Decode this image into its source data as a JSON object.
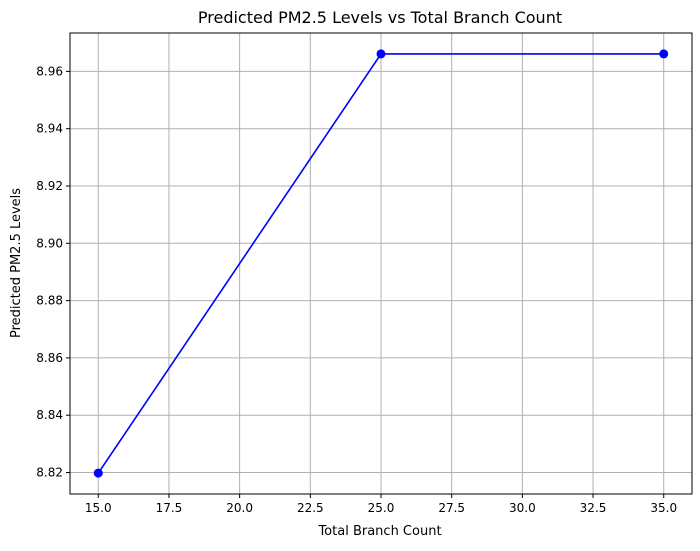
{
  "chart_data": {
    "type": "line",
    "title": "Predicted PM2.5 Levels vs Total Branch Count",
    "xlabel": "Total Branch Count",
    "ylabel": "Predicted PM2.5 Levels",
    "x": [
      15,
      25,
      35
    ],
    "series": [
      {
        "values": [
          8.8198,
          8.9661,
          8.9661
        ],
        "color": "#0000ff",
        "marker": "circle"
      }
    ],
    "xlim": [
      14,
      36
    ],
    "ylim": [
      8.8125,
      8.9734
    ],
    "xticks": [
      15.0,
      17.5,
      20.0,
      22.5,
      25.0,
      27.5,
      30.0,
      32.5,
      35.0
    ],
    "xtick_labels": [
      "15.0",
      "17.5",
      "20.0",
      "22.5",
      "25.0",
      "27.5",
      "30.0",
      "32.5",
      "35.0"
    ],
    "yticks": [
      8.82,
      8.84,
      8.86,
      8.88,
      8.9,
      8.92,
      8.94,
      8.96
    ],
    "ytick_labels": [
      "8.82",
      "8.84",
      "8.86",
      "8.88",
      "8.90",
      "8.92",
      "8.94",
      "8.96"
    ],
    "grid": true
  }
}
